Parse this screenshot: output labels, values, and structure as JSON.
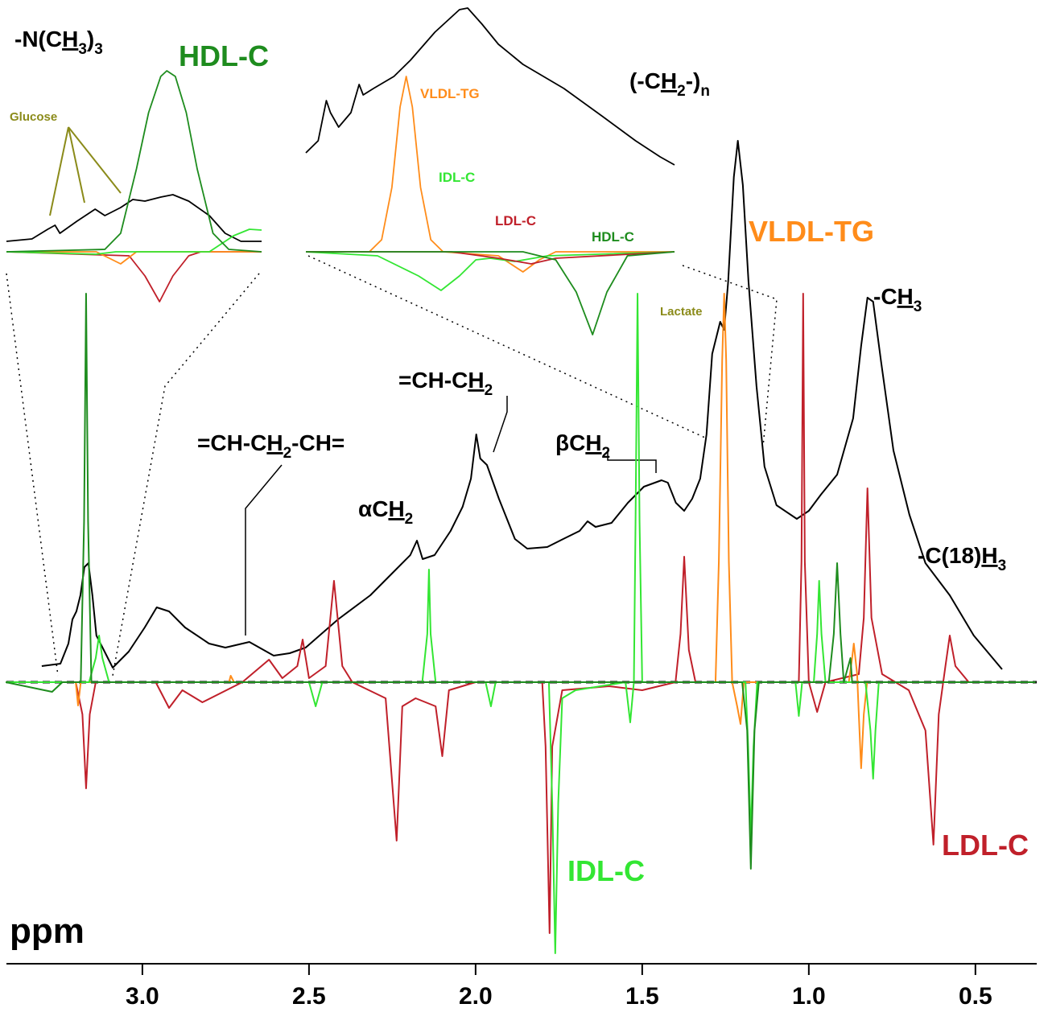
{
  "chart_data": [
    {
      "type": "line",
      "x_label": "ppm",
      "xlim": [
        3.408,
        0.316
      ],
      "ylim": [
        -340,
        848
      ],
      "xticks": [
        {
          "value": 3,
          "label": "3.0"
        },
        2.5,
        {
          "value": 2,
          "label": "2.0"
        },
        1.5,
        {
          "value": 1,
          "label": "1.0"
        },
        0.5
      ],
      "grid": false,
      "zero_line": true,
      "annotations": [
        {
          "text": [
            "-N(C",
            "H",
            "3",
            ")",
            "3"
          ]
        },
        {
          "text": [
            "(-C",
            "H",
            "2",
            "-)",
            "n"
          ]
        },
        {
          "text": [
            "-C",
            "H",
            "3"
          ]
        },
        {
          "text": [
            "-C(18)",
            "H",
            "3"
          ]
        },
        {
          "text": [
            "=CH-C",
            "H",
            "2"
          ]
        },
        {
          "text": [
            "βC",
            "H",
            "2"
          ]
        },
        {
          "text": [
            "αC",
            "H",
            "2"
          ]
        },
        {
          "text": [
            "=CH-C",
            "H",
            "2",
            "-CH="
          ]
        },
        {
          "text": [
            "Lactate"
          ]
        }
      ],
      "series": [
        {
          "color": "#000000",
          "x": [
            3.302,
            3.246,
            3.222,
            3.21,
            3.198,
            3.186,
            3.174,
            3.162,
            3.15,
            3.138,
            3.089,
            3.041,
            2.993,
            2.957,
            2.92,
            2.872,
            2.8,
            2.751,
            2.679,
            2.606,
            2.558,
            2.51,
            2.413,
            2.316,
            2.244,
            2.196,
            2.176,
            2.159,
            2.123,
            2.075,
            2.039,
            2.014,
            1.998,
            1.986,
            1.966,
            1.93,
            1.882,
            1.845,
            1.785,
            1.737,
            1.688,
            1.664,
            1.64,
            1.592,
            1.543,
            1.495,
            1.442,
            1.423,
            1.399,
            1.374,
            1.35,
            1.326,
            1.307,
            1.29,
            1.278,
            1.266,
            1.254,
            1.242,
            1.225,
            1.213,
            1.198,
            1.181,
            1.157,
            1.133,
            1.097,
            1.036,
            1.0,
            0.964,
            0.915,
            0.867,
            0.843,
            0.824,
            0.807,
            0.783,
            0.746,
            0.698,
            0.65,
            0.577,
            0.505,
            0.42
          ],
          "values": [
            20,
            23,
            48,
            78,
            88,
            108,
            143,
            148,
            108,
            58,
            18,
            38,
            68,
            93,
            88,
            68,
            48,
            43,
            50,
            33,
            36,
            43,
            78,
            108,
            138,
            158,
            176,
            153,
            158,
            188,
            218,
            253,
            308,
            278,
            270,
            228,
            178,
            166,
            168,
            178,
            188,
            200,
            193,
            198,
            223,
            243,
            251,
            248,
            223,
            213,
            228,
            253,
            308,
            408,
            428,
            448,
            438,
            498,
            628,
            673,
            618,
            498,
            368,
            268,
            220,
            203,
            213,
            233,
            258,
            328,
            418,
            478,
            473,
            398,
            288,
            208,
            148,
            108,
            58,
            16
          ]
        },
        {
          "name": "LDL-C",
          "color": "#c0202a",
          "x": [
            3.41,
            3.2,
            3.18,
            3.169,
            3.158,
            3.14,
            2.96,
            2.92,
            2.88,
            2.82,
            2.7,
            2.62,
            2.58,
            2.535,
            2.519,
            2.5,
            2.45,
            2.425,
            2.4,
            2.37,
            2.27,
            2.237,
            2.22,
            2.18,
            2.12,
            2.1,
            2.08,
            2.0,
            1.8,
            1.79,
            1.778,
            1.77,
            1.74,
            1.6,
            1.5,
            1.4,
            1.385,
            1.374,
            1.36,
            1.34,
            1.03,
            1.022,
            1.017,
            1.012,
            1.0,
            0.975,
            0.95,
            0.85,
            0.835,
            0.824,
            0.812,
            0.78,
            0.7,
            0.65,
            0.626,
            0.61,
            0.59,
            0.577,
            0.56,
            0.52,
            0.32
          ],
          "values": [
            0,
            0,
            -40,
            -132,
            -40,
            0,
            0,
            -32,
            -10,
            -25,
            0,
            28,
            5,
            20,
            53,
            5,
            20,
            126,
            20,
            0,
            -20,
            -197,
            -30,
            -20,
            -30,
            -92,
            -10,
            0,
            0,
            -80,
            -312,
            -80,
            -10,
            -5,
            -10,
            0,
            60,
            156,
            40,
            0,
            0,
            150,
            483,
            150,
            0,
            -37,
            0,
            10,
            80,
            241,
            80,
            10,
            -10,
            -60,
            -202,
            -40,
            20,
            58,
            20,
            0,
            0
          ]
        },
        {
          "name": "VLDL-TG",
          "color": "#ff8c1a",
          "x": [
            3.41,
            3.2,
            3.193,
            3.185,
            2.74,
            2.735,
            2.725,
            1.28,
            1.27,
            1.26,
            1.254,
            1.248,
            1.24,
            1.23,
            1.215,
            1.205,
            1.195,
            0.88,
            0.87,
            0.865,
            0.855,
            0.85,
            0.843,
            0.835,
            0.825,
            0.32
          ],
          "values": [
            0,
            0,
            -29,
            0,
            0,
            8,
            0,
            0,
            150,
            400,
            483,
            400,
            150,
            0,
            -30,
            -52,
            0,
            0,
            30,
            48,
            10,
            -40,
            -107,
            -40,
            0,
            0
          ]
        },
        {
          "name": "IDL-C",
          "color": "#33e633",
          "x": [
            3.41,
            3.16,
            3.14,
            3.13,
            3.12,
            3.1,
            2.5,
            2.48,
            2.46,
            2.16,
            2.145,
            2.14,
            2.135,
            2.12,
            1.97,
            1.954,
            1.94,
            1.78,
            1.77,
            1.761,
            1.752,
            1.74,
            1.7,
            1.55,
            1.536,
            1.525,
            1.52,
            1.514,
            1.508,
            1.5,
            1.19,
            1.182,
            1.174,
            1.166,
            1.155,
            1.04,
            1.03,
            1.02,
            0.985,
            0.975,
            0.969,
            0.962,
            0.95,
            0.83,
            0.815,
            0.807,
            0.8,
            0.79,
            0.32
          ],
          "values": [
            0,
            0,
            30,
            58,
            30,
            0,
            0,
            -30,
            0,
            0,
            60,
            140,
            60,
            0,
            0,
            -30,
            0,
            0,
            -150,
            -337,
            -150,
            -20,
            -10,
            0,
            -50,
            0,
            200,
            483,
            200,
            0,
            0,
            -80,
            -192,
            -80,
            0,
            0,
            -42,
            0,
            0,
            60,
            126,
            60,
            0,
            0,
            -60,
            -120,
            -60,
            0,
            0
          ]
        },
        {
          "name": "HDL-C",
          "color": "#1e8c1e",
          "x": [
            3.41,
            3.271,
            3.24,
            3.185,
            3.175,
            3.169,
            3.163,
            3.153,
            1.2,
            1.185,
            1.174,
            1.163,
            1.15,
            0.94,
            0.925,
            0.915,
            0.905,
            0.895,
            0.875,
            0.87,
            0.32
          ],
          "values": [
            0,
            -12,
            0,
            0,
            200,
            483,
            200,
            0,
            0,
            -60,
            -232,
            -60,
            0,
            0,
            60,
            148,
            60,
            0,
            30,
            0,
            0
          ]
        }
      ]
    },
    {
      "type": "line",
      "xlim": [
        3.3,
        3.09
      ],
      "ylim": [
        -67,
        313
      ],
      "annotations": [
        {
          "text": [
            "Glucose"
          ]
        }
      ],
      "series": [
        {
          "color": "#000000",
          "x": [
            3.3,
            3.279,
            3.266,
            3.26,
            3.256,
            3.242,
            3.232,
            3.227,
            3.219,
            3.206,
            3.196,
            3.186,
            3.173,
            3.163,
            3.15,
            3.133,
            3.12,
            3.107,
            3.09
          ],
          "values": [
            13,
            16,
            28,
            33,
            23,
            38,
            48,
            53,
            45,
            55,
            65,
            63,
            68,
            71,
            63,
            45,
            23,
            13,
            13
          ]
        },
        {
          "color": "#c0202a",
          "x": [
            3.3,
            3.199,
            3.186,
            3.174,
            3.163,
            3.15,
            3.14,
            3.09
          ],
          "values": [
            0,
            -5,
            -30,
            -62,
            -30,
            -5,
            0,
            0
          ]
        },
        {
          "color": "#ff8c1a",
          "x": [
            3.3,
            3.226,
            3.206,
            3.193,
            3.09
          ],
          "values": [
            0,
            0,
            -15,
            0,
            0
          ]
        },
        {
          "color": "#33e633",
          "x": [
            3.3,
            3.226,
            3.21,
            3.133,
            3.113,
            3.1,
            3.09
          ],
          "values": [
            0,
            -3,
            0,
            0,
            20,
            28,
            27
          ]
        },
        {
          "color": "#1e8c1e",
          "x": [
            3.3,
            3.219,
            3.206,
            3.193,
            3.183,
            3.173,
            3.168,
            3.161,
            3.152,
            3.143,
            3.13,
            3.117,
            3.09
          ],
          "values": [
            0,
            3,
            23,
            103,
            173,
            218,
            225,
            218,
            173,
            103,
            23,
            3,
            0
          ]
        }
      ]
    },
    {
      "type": "line",
      "xlim": [
        1.31,
        1.13
      ],
      "ylim": [
        -67,
        313
      ],
      "series": [
        {
          "color": "#000000",
          "x": [
            1.31,
            1.304,
            1.3,
            1.298,
            1.294,
            1.288,
            1.284,
            1.282,
            1.277,
            1.267,
            1.259,
            1.247,
            1.235,
            1.231,
            1.224,
            1.216,
            1.204,
            1.184,
            1.165,
            1.149,
            1.137,
            1.13
          ],
          "values": [
            123,
            138,
            188,
            173,
            155,
            173,
            208,
            195,
            203,
            218,
            238,
            273,
            301,
            303,
            283,
            258,
            233,
            203,
            168,
            138,
            118,
            108
          ]
        },
        {
          "name": "VLDL-TG",
          "color": "#ff8c1a",
          "x": [
            1.31,
            1.279,
            1.273,
            1.268,
            1.264,
            1.261,
            1.258,
            1.254,
            1.249,
            1.243,
            1.216,
            1.204,
            1.196,
            1.188,
            1.13
          ],
          "values": [
            0,
            0,
            15,
            80,
            180,
            218,
            180,
            80,
            15,
            0,
            -5,
            -25,
            -10,
            0,
            0
          ]
        },
        {
          "name": "IDL-C",
          "color": "#33e633",
          "x": [
            1.31,
            1.275,
            1.255,
            1.244,
            1.235,
            1.227,
            1.22,
            1.208,
            1.192,
            1.13
          ],
          "values": [
            0,
            -5,
            -30,
            -48,
            -30,
            -10,
            -8,
            -12,
            -5,
            0
          ]
        },
        {
          "name": "LDL-C",
          "color": "#c0202a",
          "x": [
            1.31,
            1.239,
            1.216,
            1.2,
            1.188,
            1.13
          ],
          "values": [
            0,
            0,
            -8,
            -15,
            -8,
            0
          ]
        },
        {
          "name": "HDL-C",
          "color": "#1e8c1e",
          "x": [
            1.31,
            1.204,
            1.188,
            1.178,
            1.17,
            1.163,
            1.153,
            1.13
          ],
          "values": [
            0,
            0,
            -10,
            -50,
            -103,
            -50,
            -5,
            0
          ]
        }
      ]
    }
  ]
}
